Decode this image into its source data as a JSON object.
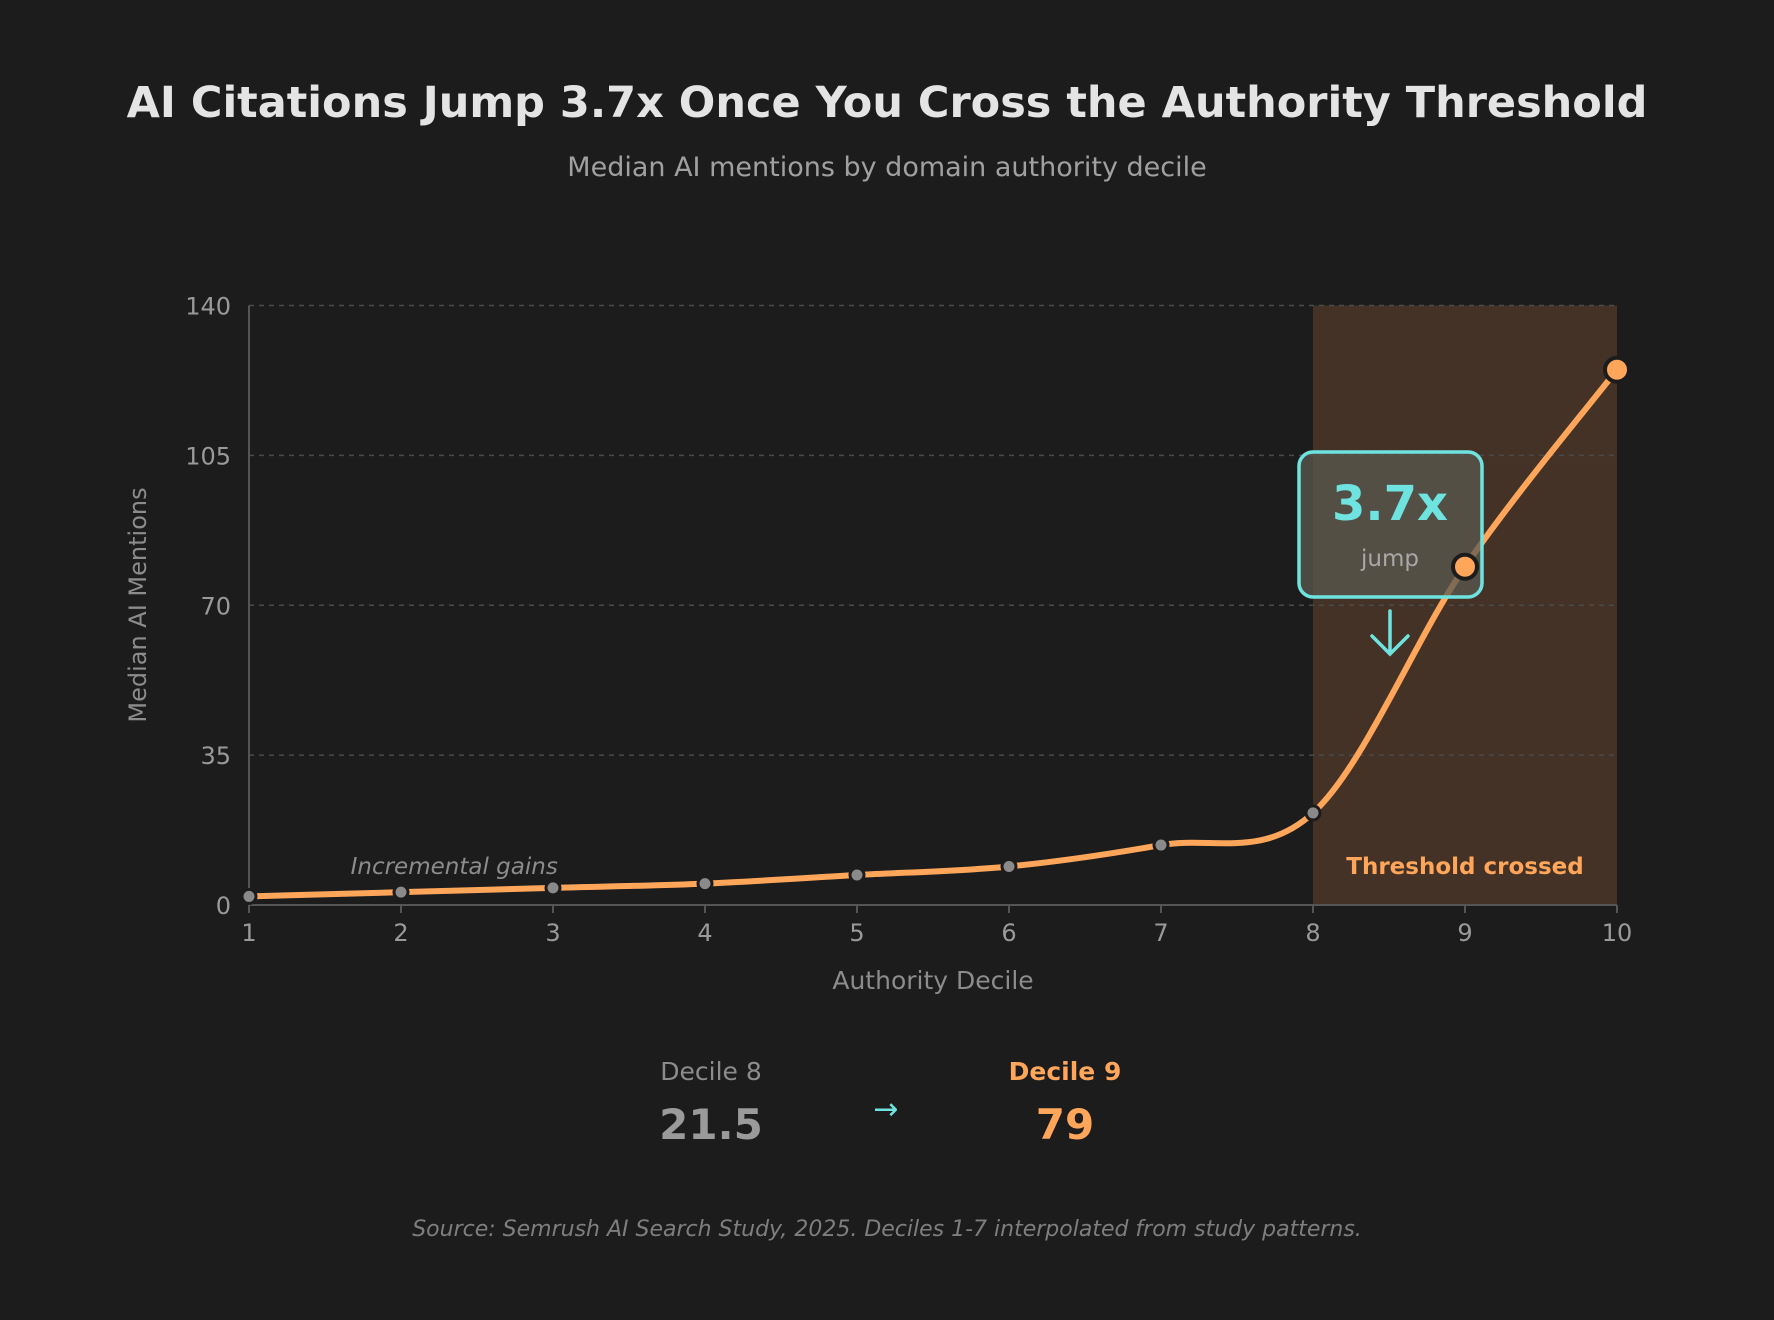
{
  "title": "AI Citations Jump 3.7x Once You Cross the Authority Threshold",
  "subtitle": "Median AI mentions by domain authority decile",
  "chart_data": {
    "type": "line",
    "xlabel": "Authority Decile",
    "ylabel": "Median AI Mentions",
    "x": [
      1,
      2,
      3,
      4,
      5,
      6,
      7,
      8,
      9,
      10
    ],
    "series": [
      {
        "values": [
          2,
          3,
          4,
          5,
          7,
          9,
          14,
          21.5,
          79,
          125
        ]
      }
    ],
    "xlim": [
      1,
      10
    ],
    "ylim": [
      0,
      140
    ],
    "yticks": [
      0,
      35,
      70,
      105,
      140
    ],
    "xticks": [
      1,
      2,
      3,
      4,
      5,
      6,
      7,
      8,
      9,
      10
    ],
    "grid": "horizontal dashed",
    "shaded_region": {
      "x": [
        8,
        10
      ],
      "label": "Threshold crossed"
    },
    "annotations": [
      {
        "text": "Incremental gains",
        "x": 2.35,
        "y": 7
      },
      {
        "value": "3.7x",
        "caption": "jump",
        "x": 8.5
      }
    ],
    "colors": {
      "line": "#ffa65a",
      "accent": "#6fe3e0",
      "shade": "#443226",
      "point_low": "#8a8a8a",
      "background": "#1c1c1c"
    }
  },
  "summary": {
    "from": {
      "label": "Decile 8",
      "value": "21.5"
    },
    "to": {
      "label": "Decile 9",
      "value": "79"
    },
    "arrow_icon": "arrow-right-icon"
  },
  "source": "Source: Semrush AI Search Study, 2025. Deciles 1-7 interpolated from study patterns."
}
